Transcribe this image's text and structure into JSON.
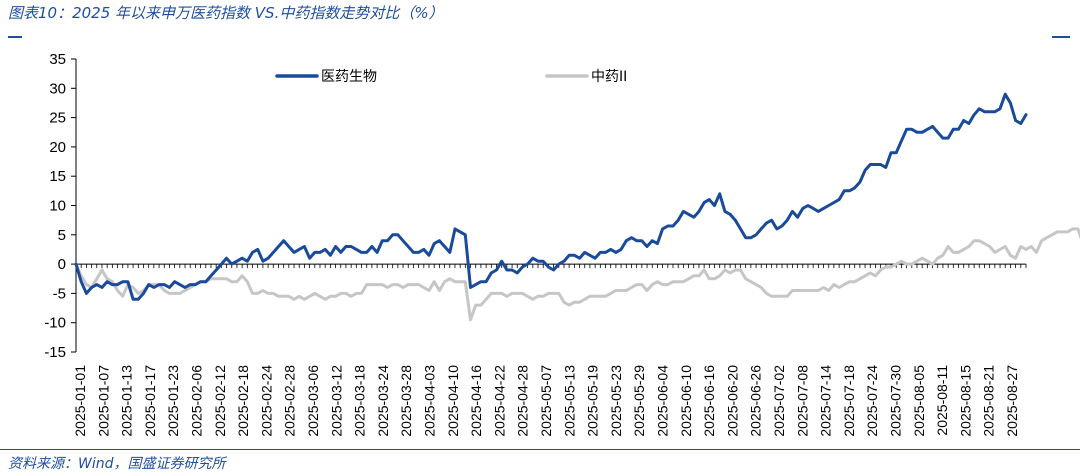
{
  "header": {
    "title": "图表10：2025 年以来申万医药指数 VS.中药指数走势对比（%）"
  },
  "footer": {
    "source": "资料来源：Wind，国盛证券研究所"
  },
  "colors": {
    "series_primary": "#1a4a9a",
    "series_secondary": "#c6c6c6",
    "accent": "#1f4e9e"
  },
  "chart_data": {
    "type": "line",
    "ylim": [
      -15,
      35
    ],
    "yticks": [
      -15,
      -10,
      -5,
      0,
      5,
      10,
      15,
      20,
      25,
      30,
      35
    ],
    "legend_position": "top-center",
    "grid": false,
    "x_tick_labels": [
      "2025-01-01",
      "2025-01-07",
      "2025-01-13",
      "2025-01-17",
      "2025-01-23",
      "2025-02-06",
      "2025-02-12",
      "2025-02-18",
      "2025-02-24",
      "2025-02-28",
      "2025-03-06",
      "2025-03-12",
      "2025-03-18",
      "2025-03-24",
      "2025-03-28",
      "2025-04-03",
      "2025-04-10",
      "2025-04-16",
      "2025-04-22",
      "2025-04-28",
      "2025-05-07",
      "2025-05-13",
      "2025-05-19",
      "2025-05-23",
      "2025-05-29",
      "2025-06-04",
      "2025-06-10",
      "2025-06-16",
      "2025-06-20",
      "2025-06-26",
      "2025-07-02",
      "2025-07-08",
      "2025-07-14",
      "2025-07-18",
      "2025-07-24",
      "2025-07-30",
      "2025-08-05",
      "2025-08-11",
      "2025-08-15",
      "2025-08-21",
      "2025-08-27"
    ],
    "series": [
      {
        "name": "医药生物",
        "color": "#1a4a9a",
        "values": [
          0,
          -3,
          -5,
          -4,
          -3.5,
          -4,
          -3,
          -3.5,
          -3.5,
          -3,
          -3,
          -6,
          -6,
          -5,
          -3.5,
          -4,
          -3.5,
          -3.5,
          -4,
          -3,
          -3.5,
          -4,
          -3.5,
          -3.5,
          -3,
          -3,
          -2,
          -1,
          0,
          1,
          0,
          0.5,
          1,
          0.5,
          2,
          2.5,
          0.5,
          1,
          2,
          3,
          4,
          3,
          2,
          2.5,
          3,
          1,
          2,
          2,
          2.5,
          1.5,
          3,
          2,
          3,
          3,
          2.5,
          2,
          2,
          3,
          2,
          4,
          4,
          5,
          5,
          4,
          3,
          2,
          2,
          2.5,
          1.5,
          3.5,
          4,
          3,
          2,
          6,
          5.5,
          5,
          -4,
          -3.5,
          -3,
          -3,
          -1.5,
          -1,
          0.5,
          -1,
          -1,
          -1.5,
          -0.5,
          0,
          1,
          0.5,
          0.5,
          -0.5,
          -1,
          0,
          0.5,
          1.5,
          1.5,
          1,
          2,
          1.5,
          1,
          2,
          2,
          2.5,
          2,
          2.5,
          4,
          4.5,
          4,
          4,
          3,
          4,
          3.5,
          6,
          6.5,
          6.5,
          7.5,
          9,
          8.5,
          8,
          9,
          10.5,
          11,
          10,
          12,
          9,
          8.5,
          7.5,
          6,
          4.5,
          4.5,
          5,
          6,
          7,
          7.5,
          6,
          6.5,
          7.5,
          9,
          8,
          9.5,
          10,
          9.5,
          9,
          9.5,
          10,
          10.5,
          11,
          12.5,
          12.5,
          13,
          14,
          16,
          17,
          17,
          17,
          16.5,
          19,
          19,
          21,
          23,
          23,
          22.5,
          22.5,
          23,
          23.5,
          22.5,
          21.5,
          21.5,
          23,
          23,
          24.5,
          24,
          25.5,
          26.5,
          26,
          26,
          26,
          26.5,
          29,
          27.5,
          24.5,
          24,
          25.5
        ]
      },
      {
        "name": "中药II",
        "color": "#c6c6c6",
        "values": [
          0,
          -2,
          -3.5,
          -4,
          -2.5,
          -1,
          -2.5,
          -3,
          -4.5,
          -5.5,
          -3.5,
          -4,
          -5,
          -4.5,
          -3.5,
          -3.5,
          -3.5,
          -4.5,
          -5,
          -5,
          -5,
          -4.5,
          -4,
          -3.5,
          -3,
          -3,
          -2.5,
          -2.5,
          -2.5,
          -2.5,
          -3,
          -3,
          -2,
          -3,
          -5,
          -5,
          -4.5,
          -5,
          -5,
          -5.5,
          -5.5,
          -5.5,
          -6,
          -5.5,
          -6,
          -5.5,
          -5,
          -5.5,
          -6,
          -5.5,
          -5.5,
          -5,
          -5,
          -5.5,
          -5,
          -5,
          -3.5,
          -3.5,
          -3.5,
          -3.5,
          -4,
          -3.5,
          -3.5,
          -4,
          -3.5,
          -3.5,
          -3.5,
          -4,
          -4.5,
          -3,
          -4.5,
          -3,
          -2.5,
          -3,
          -3,
          -3,
          -9.5,
          -7,
          -7,
          -6,
          -5,
          -5,
          -5,
          -5.5,
          -5,
          -5,
          -5,
          -5.5,
          -6,
          -5.5,
          -5.5,
          -5,
          -5,
          -5,
          -6.5,
          -7,
          -6.5,
          -6.5,
          -6,
          -5.5,
          -5.5,
          -5.5,
          -5.5,
          -5,
          -4.5,
          -4.5,
          -4.5,
          -4,
          -3.5,
          -3.5,
          -4.5,
          -3.5,
          -3,
          -3.5,
          -3.5,
          -3,
          -3,
          -3,
          -2.5,
          -2,
          -2,
          -1,
          -2.5,
          -2.5,
          -2,
          -1,
          -1.5,
          -1,
          -1,
          -2.5,
          -3,
          -3.5,
          -4,
          -5,
          -5.5,
          -5.5,
          -5.5,
          -5.5,
          -4.5,
          -4.5,
          -4.5,
          -4.5,
          -4.5,
          -4.5,
          -4,
          -4.5,
          -3.5,
          -4,
          -3.5,
          -3,
          -3,
          -2.5,
          -2,
          -1.5,
          -2,
          -1,
          -0.5,
          -0.5,
          0,
          0.5,
          0,
          0,
          0.5,
          1,
          0.5,
          0,
          1,
          1.5,
          3,
          2,
          2,
          2.5,
          3,
          4,
          4,
          3.5,
          3,
          2,
          2.5,
          3,
          1.5,
          1,
          3,
          2.5,
          3,
          2,
          4,
          4.5,
          5,
          5.5,
          5.5,
          5.5,
          6,
          6,
          3.5,
          3,
          3.5
        ]
      }
    ]
  }
}
